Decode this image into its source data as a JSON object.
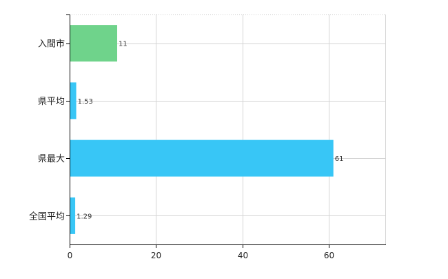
{
  "chart_data": {
    "type": "bar",
    "orientation": "horizontal",
    "categories": [
      "入間市",
      "県平均",
      "県最大",
      "全国平均"
    ],
    "values": [
      11,
      1.53,
      61,
      1.29
    ],
    "value_labels": [
      "11",
      "1.53",
      "61",
      "1.29"
    ],
    "bar_colors": [
      "#6fd38b",
      "#38c6f6",
      "#38c6f6",
      "#38c6f6"
    ],
    "xlim": [
      0,
      73
    ],
    "x_ticks": [
      0,
      20,
      40,
      60
    ],
    "x_tick_labels": [
      "0",
      "20",
      "40",
      "60"
    ],
    "grid": true,
    "title": "",
    "xlabel": "",
    "ylabel": ""
  }
}
